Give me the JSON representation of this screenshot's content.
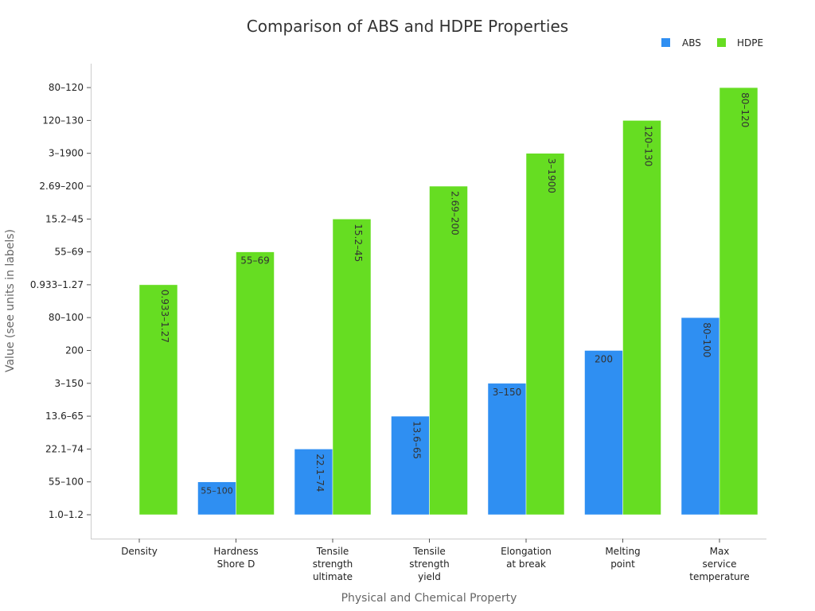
{
  "chart_data": {
    "type": "bar",
    "title": "Comparison of ABS and HDPE Properties",
    "xlabel": "Physical and Chemical Property",
    "ylabel": "Value (see units in labels)",
    "categories": [
      [
        "Density"
      ],
      [
        "Hardness",
        "Shore D"
      ],
      [
        "Tensile",
        "strength",
        "ultimate"
      ],
      [
        "Tensile",
        "strength",
        "yield"
      ],
      [
        "Elongation",
        "at break"
      ],
      [
        "Melting",
        "point"
      ],
      [
        "Max",
        "service",
        "temperature"
      ]
    ],
    "y_ticks": [
      "1.0–1.2",
      "55–100",
      "22.1–74",
      "13.6–65",
      "3–150",
      "200",
      "80–100",
      "0.933–1.27",
      "55–69",
      "15.2–45",
      "2.69–200",
      "3–1900",
      "120–130",
      "80–120"
    ],
    "legend_position": "top-right",
    "series": [
      {
        "name": "ABS",
        "color": "#2f8ff2",
        "levels": [
          null,
          1,
          2,
          3,
          4,
          5,
          6
        ],
        "labels": [
          null,
          "55–100",
          "22.1–74",
          "13.6–65",
          "3–150",
          "200",
          "80–100"
        ],
        "label_rotated": [
          false,
          false,
          true,
          true,
          false,
          false,
          true
        ]
      },
      {
        "name": "HDPE",
        "color": "#66dd22",
        "levels": [
          7,
          8,
          9,
          10,
          11,
          12,
          13
        ],
        "labels": [
          "0.933–1.27",
          "55–69",
          "15.2–45",
          "2.69–200",
          "3–1900",
          "120–130",
          "80–120"
        ],
        "label_rotated": [
          true,
          false,
          true,
          true,
          true,
          true,
          true
        ]
      }
    ]
  }
}
